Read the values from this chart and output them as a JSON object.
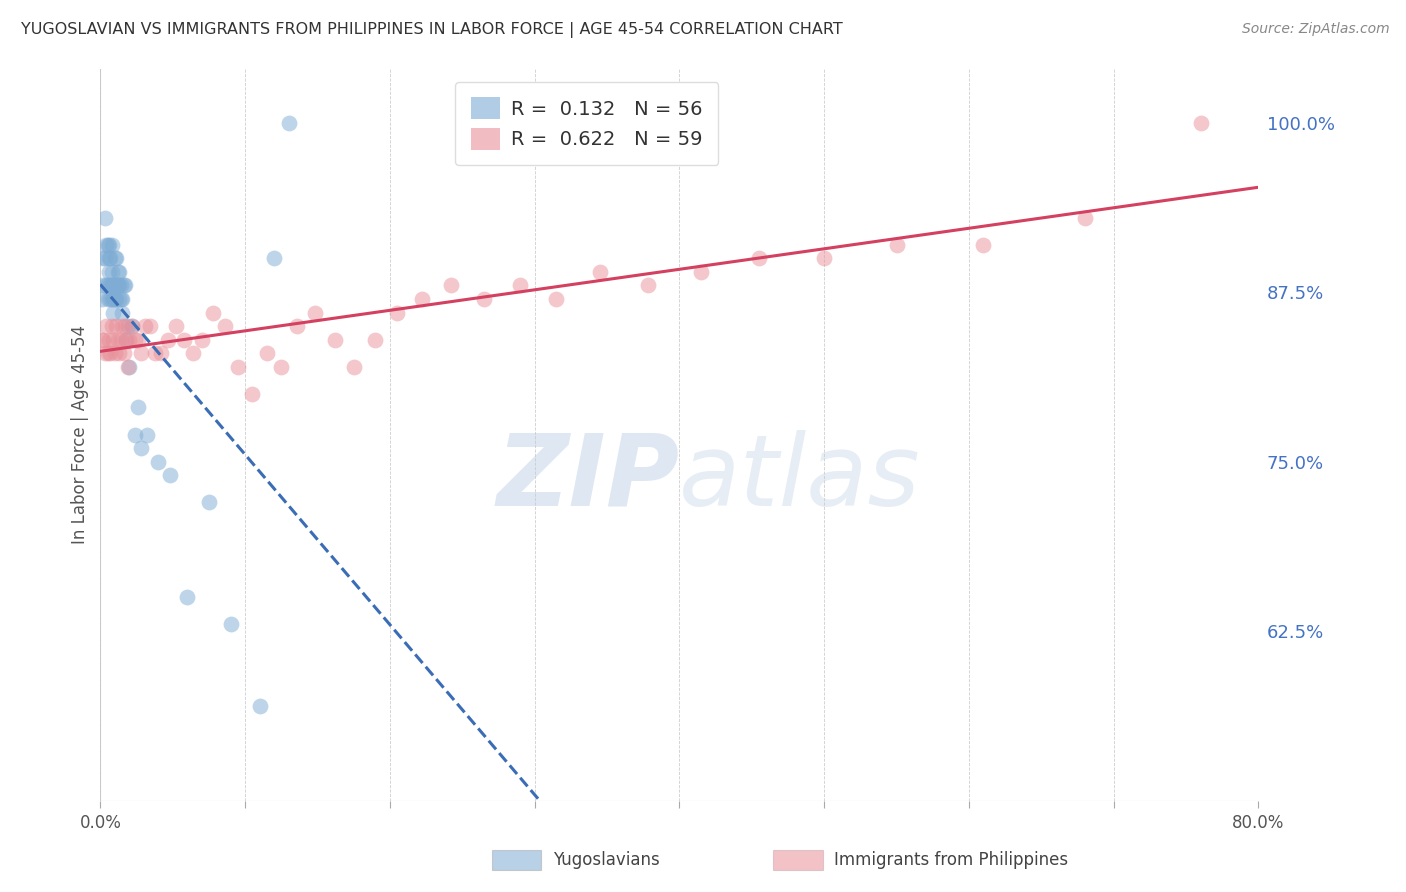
{
  "title": "YUGOSLAVIAN VS IMMIGRANTS FROM PHILIPPINES IN LABOR FORCE | AGE 45-54 CORRELATION CHART",
  "source": "Source: ZipAtlas.com",
  "xlabel": "",
  "ylabel": "In Labor Force | Age 45-54",
  "xlim": [
    0.0,
    0.8
  ],
  "ylim": [
    0.5,
    1.04
  ],
  "yticks": [
    0.625,
    0.75,
    0.875,
    1.0
  ],
  "ytick_labels": [
    "62.5%",
    "75.0%",
    "87.5%",
    "100.0%"
  ],
  "xticks": [
    0.0,
    0.1,
    0.2,
    0.3,
    0.4,
    0.5,
    0.6,
    0.7,
    0.8
  ],
  "xtick_labels": [
    "0.0%",
    "",
    "",
    "",
    "",
    "",
    "",
    "",
    "80.0%"
  ],
  "blue_R": 0.132,
  "blue_N": 56,
  "pink_R": 0.622,
  "pink_N": 59,
  "blue_color": "#7eacd4",
  "pink_color": "#e8909a",
  "trend_blue_color": "#3a6db5",
  "trend_pink_color": "#d44060",
  "watermark_zip": "ZIP",
  "watermark_atlas": "atlas",
  "legend_label_blue": "Yugoslavians",
  "legend_label_pink": "Immigrants from Philippines",
  "blue_x": [
    0.001,
    0.002,
    0.002,
    0.003,
    0.003,
    0.004,
    0.004,
    0.005,
    0.005,
    0.005,
    0.006,
    0.006,
    0.006,
    0.007,
    0.007,
    0.007,
    0.008,
    0.008,
    0.008,
    0.008,
    0.009,
    0.009,
    0.009,
    0.01,
    0.01,
    0.01,
    0.011,
    0.011,
    0.011,
    0.012,
    0.012,
    0.013,
    0.013,
    0.013,
    0.014,
    0.014,
    0.015,
    0.015,
    0.016,
    0.017,
    0.018,
    0.019,
    0.02,
    0.022,
    0.024,
    0.026,
    0.028,
    0.032,
    0.04,
    0.048,
    0.06,
    0.075,
    0.09,
    0.11,
    0.12,
    0.13
  ],
  "blue_y": [
    0.87,
    0.88,
    0.9,
    0.9,
    0.93,
    0.91,
    0.88,
    0.91,
    0.88,
    0.87,
    0.9,
    0.91,
    0.89,
    0.88,
    0.9,
    0.87,
    0.89,
    0.88,
    0.87,
    0.91,
    0.88,
    0.87,
    0.86,
    0.9,
    0.88,
    0.87,
    0.88,
    0.87,
    0.9,
    0.89,
    0.88,
    0.89,
    0.87,
    0.88,
    0.88,
    0.87,
    0.87,
    0.86,
    0.88,
    0.88,
    0.84,
    0.85,
    0.82,
    0.85,
    0.77,
    0.79,
    0.76,
    0.77,
    0.75,
    0.74,
    0.65,
    0.72,
    0.63,
    0.57,
    0.9,
    1.0
  ],
  "pink_x": [
    0.001,
    0.002,
    0.003,
    0.004,
    0.005,
    0.006,
    0.007,
    0.008,
    0.009,
    0.01,
    0.011,
    0.012,
    0.013,
    0.014,
    0.015,
    0.016,
    0.017,
    0.018,
    0.019,
    0.02,
    0.022,
    0.024,
    0.026,
    0.028,
    0.031,
    0.034,
    0.038,
    0.042,
    0.047,
    0.052,
    0.058,
    0.064,
    0.07,
    0.078,
    0.086,
    0.095,
    0.105,
    0.115,
    0.125,
    0.136,
    0.148,
    0.162,
    0.175,
    0.19,
    0.205,
    0.222,
    0.242,
    0.265,
    0.29,
    0.315,
    0.345,
    0.378,
    0.415,
    0.455,
    0.5,
    0.55,
    0.61,
    0.68,
    0.76
  ],
  "pink_y": [
    0.84,
    0.84,
    0.83,
    0.85,
    0.83,
    0.84,
    0.83,
    0.85,
    0.84,
    0.83,
    0.85,
    0.84,
    0.83,
    0.84,
    0.85,
    0.83,
    0.85,
    0.84,
    0.82,
    0.84,
    0.85,
    0.84,
    0.84,
    0.83,
    0.85,
    0.85,
    0.83,
    0.83,
    0.84,
    0.85,
    0.84,
    0.83,
    0.84,
    0.86,
    0.85,
    0.82,
    0.8,
    0.83,
    0.82,
    0.85,
    0.86,
    0.84,
    0.82,
    0.84,
    0.86,
    0.87,
    0.88,
    0.87,
    0.88,
    0.87,
    0.89,
    0.88,
    0.89,
    0.9,
    0.9,
    0.91,
    0.91,
    0.93,
    1.0
  ]
}
